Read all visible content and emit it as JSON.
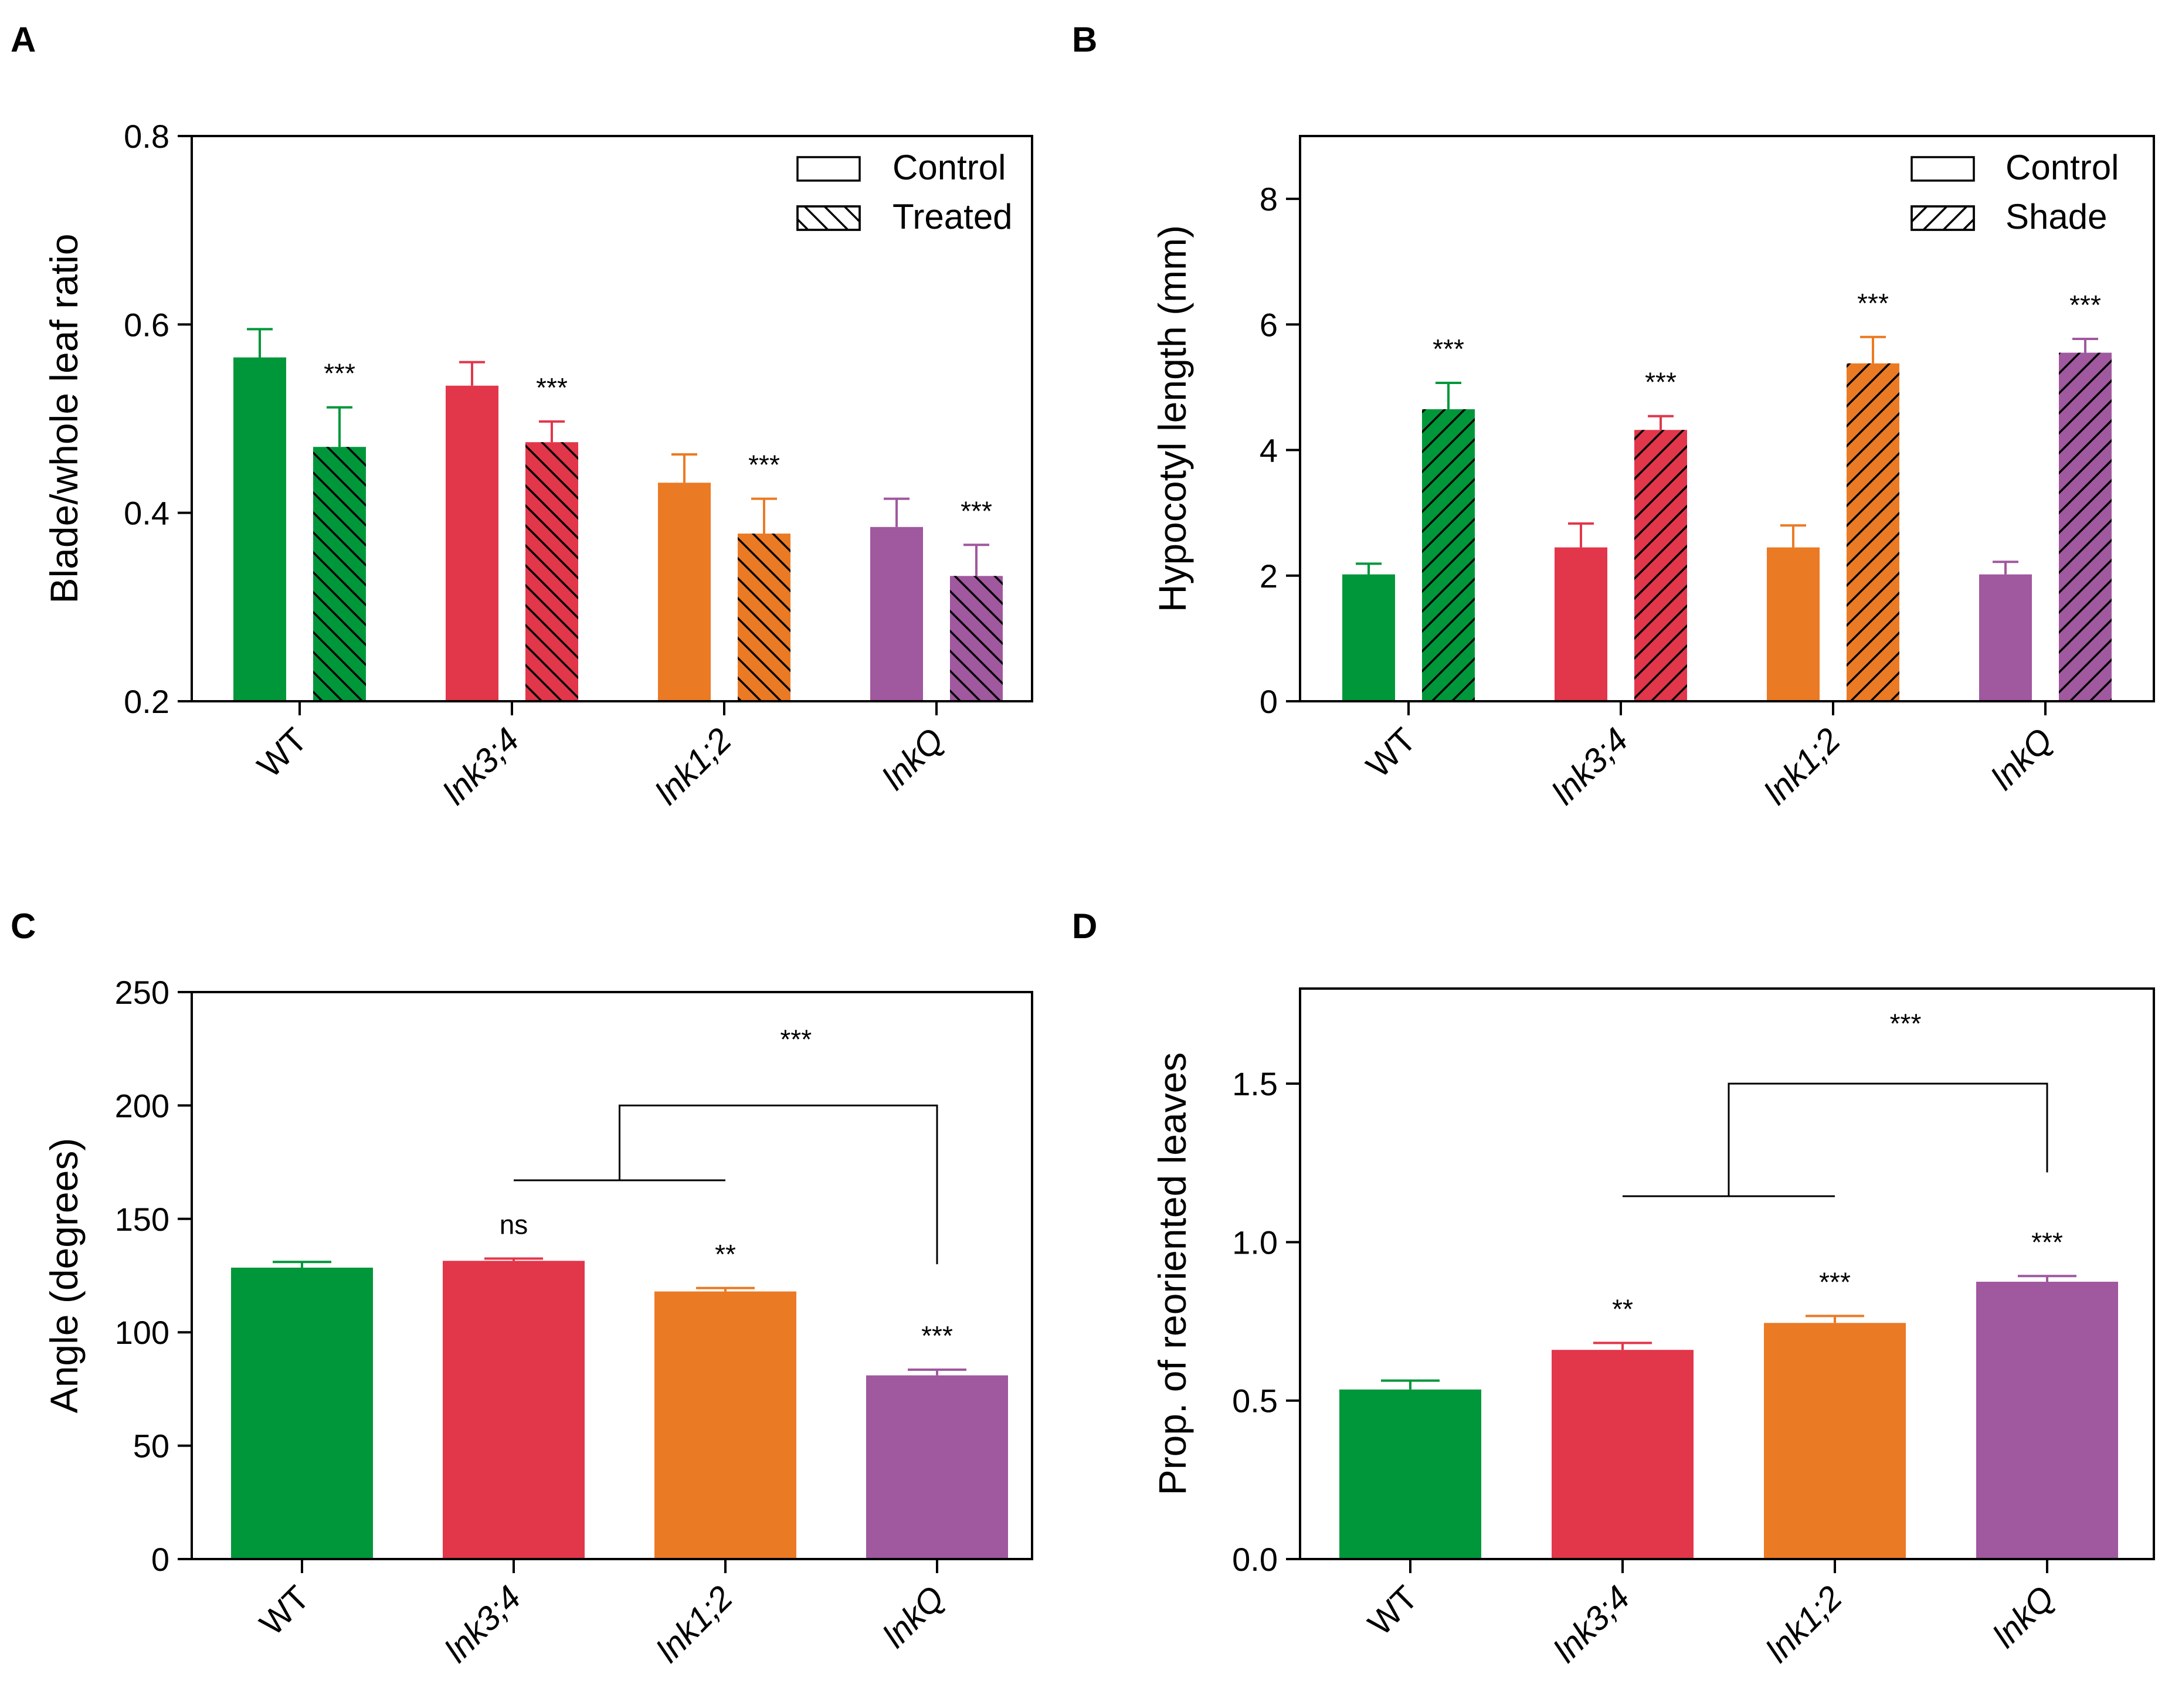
{
  "colors": {
    "WT": "#00973a",
    "lnk3;4": "#e2364a",
    "lnk1;2": "#eb7a24",
    "lnkQ": "#a0589e",
    "axis": "#000000"
  },
  "chart_data": [
    {
      "id": "A",
      "panel_label": "A",
      "type": "bar",
      "categories": [
        "WT",
        "lnk3;4",
        "lnk1;2",
        "lnkQ"
      ],
      "italic_categories": [
        false,
        true,
        true,
        true
      ],
      "series": [
        {
          "name": "Control",
          "pattern": "none",
          "values": [
            0.565,
            0.535,
            0.432,
            0.385
          ],
          "errors": [
            0.03,
            0.025,
            0.03,
            0.03
          ]
        },
        {
          "name": "Treated",
          "pattern": "backslash",
          "values": [
            0.47,
            0.475,
            0.378,
            0.333
          ],
          "errors": [
            0.042,
            0.022,
            0.037,
            0.033
          ]
        }
      ],
      "ylabel": "Blade/whole leaf ratio",
      "xlabel": "",
      "ylim": [
        0.2,
        0.8
      ],
      "yticks": [
        0.2,
        0.4,
        0.6,
        0.8
      ],
      "ytick_labels": [
        "0.2",
        "0.4",
        "0.6",
        "0.8"
      ],
      "legend": {
        "position": "top-right",
        "entries": [
          "Control",
          "Treated"
        ]
      },
      "annotations": [
        {
          "text": "***",
          "category": 0,
          "series": 1
        },
        {
          "text": "***",
          "category": 1,
          "series": 1
        },
        {
          "text": "***",
          "category": 2,
          "series": 1
        },
        {
          "text": "***",
          "category": 3,
          "series": 1
        }
      ],
      "brackets": []
    },
    {
      "id": "B",
      "panel_label": "B",
      "type": "bar",
      "categories": [
        "WT",
        "lnk3;4",
        "lnk1;2",
        "lnkQ"
      ],
      "italic_categories": [
        false,
        true,
        true,
        true
      ],
      "series": [
        {
          "name": "Control",
          "pattern": "none",
          "values": [
            2.02,
            2.45,
            2.45,
            2.02
          ],
          "errors": [
            0.17,
            0.38,
            0.35,
            0.2
          ]
        },
        {
          "name": "Shade",
          "pattern": "slash",
          "values": [
            4.65,
            4.32,
            5.38,
            5.55
          ],
          "errors": [
            0.42,
            0.22,
            0.42,
            0.22
          ]
        }
      ],
      "ylabel": "Hypocotyl length (mm)",
      "xlabel": "",
      "ylim": [
        0,
        9
      ],
      "yticks": [
        0,
        2,
        4,
        6,
        8
      ],
      "ytick_labels": [
        "0",
        "2",
        "4",
        "6",
        "8"
      ],
      "legend": {
        "position": "top-right",
        "entries": [
          "Control",
          "Shade"
        ]
      },
      "annotations": [
        {
          "text": "***",
          "category": 0,
          "series": 1
        },
        {
          "text": "***",
          "category": 1,
          "series": 1
        },
        {
          "text": "***",
          "category": 2,
          "series": 1
        },
        {
          "text": "***",
          "category": 3,
          "series": 1
        }
      ],
      "brackets": []
    },
    {
      "id": "C",
      "panel_label": "C",
      "type": "bar",
      "categories": [
        "WT",
        "lnk3;4",
        "lnk1;2",
        "lnkQ"
      ],
      "italic_categories": [
        false,
        true,
        true,
        true
      ],
      "series": [
        {
          "name": "Angle",
          "pattern": "none",
          "values": [
            128.5,
            131.5,
            118.0,
            81.0
          ],
          "errors": [
            2.5,
            1.0,
            1.5,
            2.5
          ]
        }
      ],
      "ylabel": "Angle (degrees)",
      "xlabel": "",
      "ylim": [
        0,
        250
      ],
      "yticks": [
        0,
        50,
        100,
        150,
        200,
        250
      ],
      "ytick_labels": [
        "0",
        "50",
        "100",
        "150",
        "200",
        "250"
      ],
      "legend": null,
      "annotations": [
        {
          "text": "ns",
          "category": 1,
          "series": 0
        },
        {
          "text": "**",
          "category": 2,
          "series": 0
        },
        {
          "text": "***",
          "category": 3,
          "series": 0
        }
      ],
      "brackets": [
        {
          "text": "***",
          "group_from": 1,
          "group_to": 2,
          "group_y": 167,
          "top_y": 200,
          "target": 3,
          "target_y": 130,
          "text_y": 225
        }
      ]
    },
    {
      "id": "D",
      "panel_label": "D",
      "type": "bar",
      "categories": [
        "WT",
        "lnk3;4",
        "lnk1;2",
        "lnkQ"
      ],
      "italic_categories": [
        false,
        true,
        true,
        true
      ],
      "series": [
        {
          "name": "Proportion",
          "pattern": "none",
          "values": [
            0.535,
            0.66,
            0.745,
            0.875
          ],
          "errors": [
            0.028,
            0.022,
            0.022,
            0.018
          ]
        }
      ],
      "ylabel": "Prop. of reoriented leaves",
      "xlabel": "",
      "ylim": [
        0,
        1.8
      ],
      "yticks": [
        0.0,
        0.5,
        1.0,
        1.5
      ],
      "ytick_labels": [
        "0.0",
        "0.5",
        "1.0",
        "1.5"
      ],
      "legend": null,
      "annotations": [
        {
          "text": "**",
          "category": 1,
          "series": 0
        },
        {
          "text": "***",
          "category": 2,
          "series": 0
        },
        {
          "text": "***",
          "category": 3,
          "series": 0
        }
      ],
      "brackets": [
        {
          "text": "***",
          "group_from": 1,
          "group_to": 2,
          "group_y": 1.145,
          "top_y": 1.5,
          "target": 3,
          "target_y": 1.22,
          "text_y": 1.66
        }
      ]
    }
  ]
}
